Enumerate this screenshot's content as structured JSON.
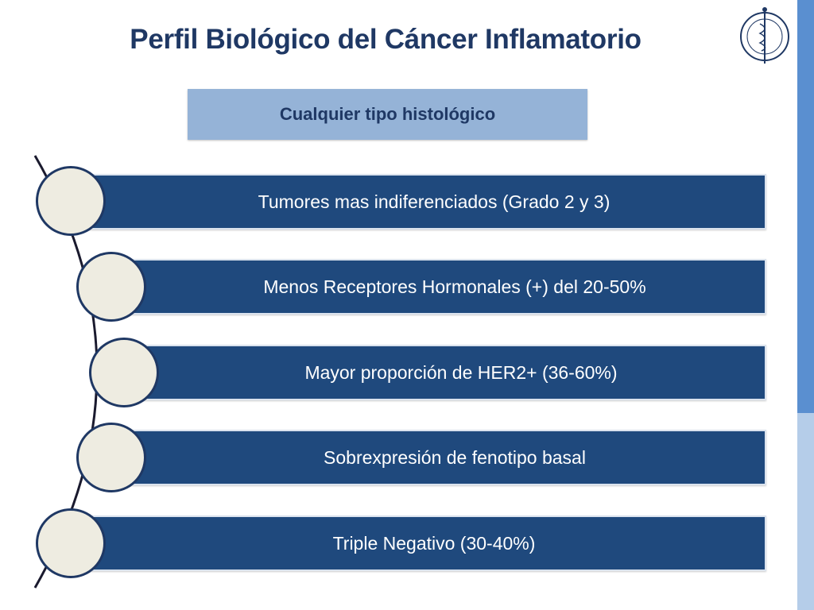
{
  "slide": {
    "title": "Perfil Biológico del Cáncer Inflamatorio",
    "subtitle": "Cualquier tipo histológico",
    "items": [
      {
        "label": "Tumores mas indiferenciados (Grado 2 y 3)"
      },
      {
        "label": "Menos Receptores Hormonales (+) del 20-50%"
      },
      {
        "label": "Mayor proporción de HER2+ (36-60%)"
      },
      {
        "label": "Sobrexpresión de fenotipo basal"
      },
      {
        "label": "Triple Negativo (30-40%)"
      }
    ]
  },
  "logo": {
    "icon": "institution-seal-icon"
  },
  "colors": {
    "title": "#1f3864",
    "bar": "#1f497d",
    "subtitle_bg": "#95b3d7",
    "circle_fill": "#eeece1",
    "accent_strip": "#5a8fd0",
    "accent_strip_light": "#b5cde9"
  }
}
